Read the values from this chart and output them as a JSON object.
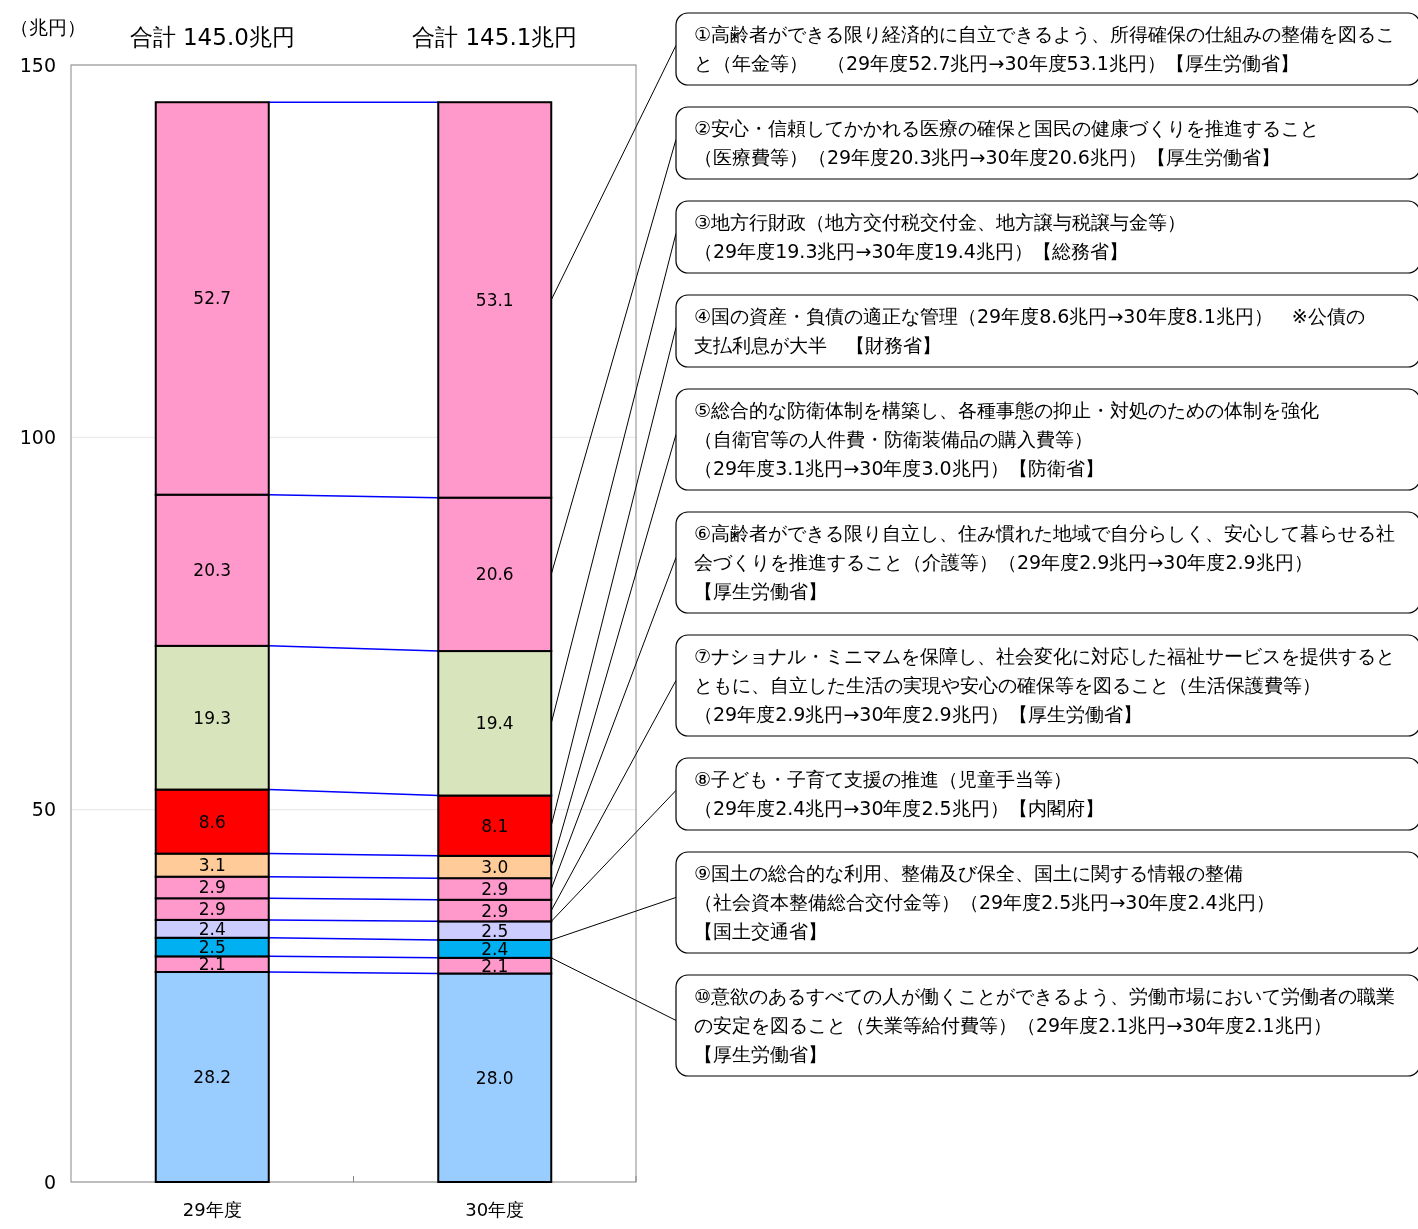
{
  "chart_data": {
    "type": "bar",
    "stacked": true,
    "ylabel": "（兆円）",
    "categories": [
      "29年度",
      "30年度"
    ],
    "ylim": [
      0,
      150
    ],
    "yticks": [
      0,
      50,
      100,
      150
    ],
    "grid": "y",
    "totals": [
      "合計 145.0兆円",
      "合計 145.1兆円"
    ],
    "series": [
      {
        "color": "#99ccff",
        "values": [
          28.2,
          28.0
        ],
        "value_labels": [
          "28.2",
          "28.0"
        ]
      },
      {
        "color": "#ff99cc",
        "values": [
          2.1,
          2.1
        ],
        "value_labels": [
          "2.1",
          "2.1"
        ]
      },
      {
        "color": "#00b0f0",
        "values": [
          2.5,
          2.4
        ],
        "value_labels": [
          "2.5",
          "2.4"
        ]
      },
      {
        "color": "#ccccff",
        "values": [
          2.4,
          2.5
        ],
        "value_labels": [
          "2.4",
          "2.5"
        ]
      },
      {
        "color": "#ff99cc",
        "values": [
          2.9,
          2.9
        ],
        "value_labels": [
          "2.9",
          "2.9"
        ]
      },
      {
        "color": "#ff99cc",
        "values": [
          2.9,
          2.9
        ],
        "value_labels": [
          "2.9",
          "2.9"
        ]
      },
      {
        "color": "#ffcc99",
        "values": [
          3.1,
          3.0
        ],
        "value_labels": [
          "3.1",
          "3.0"
        ]
      },
      {
        "color": "#ff0000",
        "values": [
          8.6,
          8.1
        ],
        "value_labels": [
          "8.6",
          "8.1"
        ]
      },
      {
        "color": "#d8e4bc",
        "values": [
          19.3,
          19.4
        ],
        "value_labels": [
          "19.3",
          "19.4"
        ]
      },
      {
        "color": "#ff99cc",
        "values": [
          20.3,
          20.6
        ],
        "value_labels": [
          "20.3",
          "20.6"
        ]
      },
      {
        "color": "#ff99cc",
        "values": [
          52.7,
          53.1
        ],
        "value_labels": [
          "52.7",
          "53.1"
        ]
      }
    ],
    "annotations": [
      "①高齢者ができる限り経済的に自立できるよう、所得確保の仕組みの整備を図ること（年金等）　（29年度52.7兆円→30年度53.1兆円）【厚生労働省】",
      "②安心・信頼してかかれる医療の確保と国民の健康づくりを推進すること（医療費等）（29年度20.3兆円→30年度20.6兆円）【厚生労働省】",
      "③地方行財政（地方交付税交付金、地方譲与税譲与金等）（29年度19.3兆円→30年度19.4兆円）【総務省】",
      "④国の資産・負債の適正な管理（29年度8.6兆円→30年度8.1兆円）　※公債の支払利息が大半　【財務省】",
      "⑤総合的な防衛体制を構築し、各種事態の抑止・対処のための体制を強化（自衛官等の人件費・防衛装備品の購入費等）（29年度3.1兆円→30年度3.0兆円）【防衛省】",
      "⑥高齢者ができる限り自立し、住み慣れた地域で自分らしく、安心して暮らせる社会づくりを推進すること（介護等）（29年度2.9兆円→30年度2.9兆円）【厚生労働省】",
      "⑦ナショナル・ミニマムを保障し、社会変化に対応した福祉サービスを提供するとともに、自立した生活の実現や安心の確保等を図ること（生活保護費等）（29年度2.9兆円→30年度2.9兆円）【厚生労働省】",
      {
        "text": "⑧子ども・子育て支援の推進（児童手当等）（29年度2.4兆円→30年度2.5兆円）【内閣府】",
        "x": "30年度",
        "y": 35.0
      },
      {
        "text": "⑨国土の総合的な利用、整備及び保全、国土に関する情報の整備（社会資本整備総合交付金等）（29年度2.5兆円→30年度2.4兆円）【国土交通省】",
        "x": "30年度",
        "y": 32.5
      },
      {
        "text": "⑩意欲のあるすべての人が働くことができるよう、労働市場において労働者の職業の安定を図ること（失業等給付費等）（29年度2.1兆円→30年度2.1兆円）【厚生労働省】",
        "x": "30年度",
        "y": 30.1
      }
    ]
  }
}
